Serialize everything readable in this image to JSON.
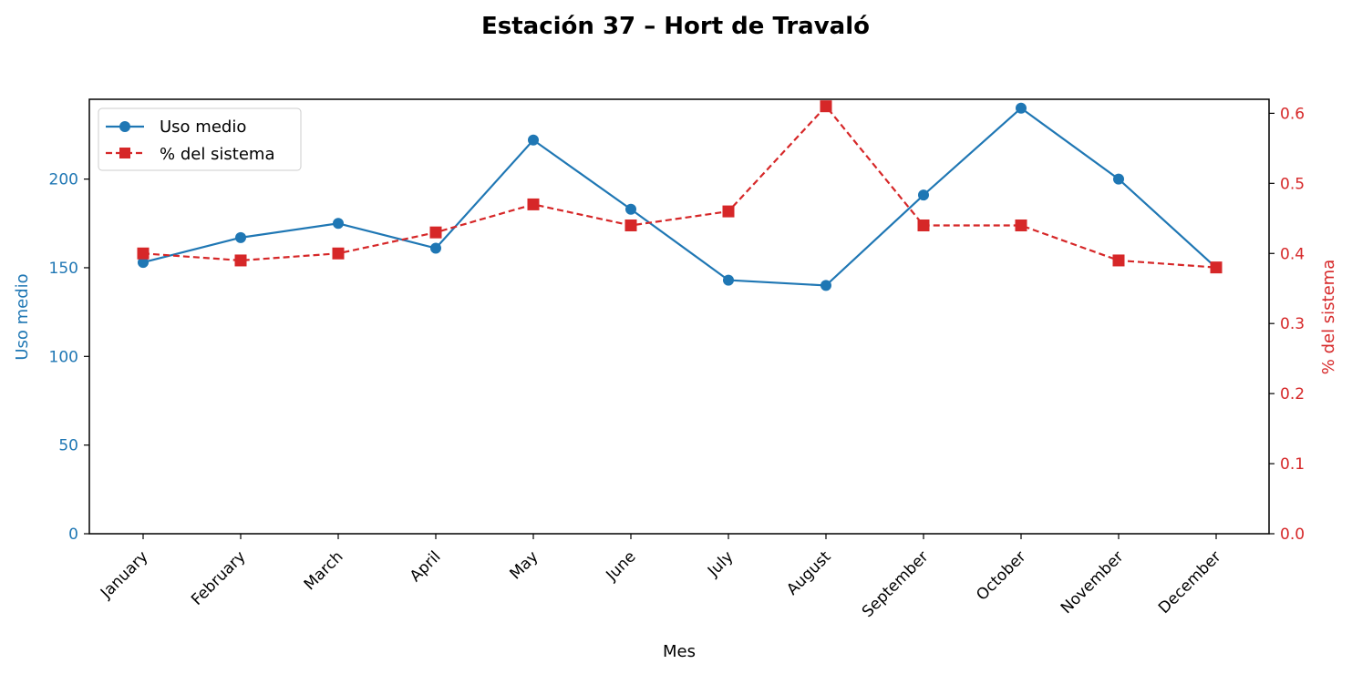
{
  "chart_data": {
    "type": "line",
    "title": "Estación 37 – Hort de Travaló",
    "xlabel": "Mes",
    "ylabel_left": "Uso medio",
    "ylabel_right": "% del sistema",
    "categories": [
      "January",
      "February",
      "March",
      "April",
      "May",
      "June",
      "July",
      "August",
      "September",
      "October",
      "November",
      "December"
    ],
    "ylim_left": [
      0,
      245
    ],
    "ylim_right": [
      0,
      0.62
    ],
    "yticks_left": [
      "0",
      "50",
      "100",
      "150",
      "200"
    ],
    "yticks_right": [
      "0.0",
      "0.1",
      "0.2",
      "0.3",
      "0.4",
      "0.5",
      "0.6"
    ],
    "legend_placement": "top-left",
    "grid": false,
    "series": [
      {
        "name": "Uso medio",
        "axis": "left",
        "color": "#1f77b4",
        "marker": "circle",
        "linestyle": "solid",
        "values": [
          153,
          167,
          175,
          161,
          222,
          183,
          143,
          140,
          191,
          240,
          200,
          150
        ]
      },
      {
        "name": "% del sistema",
        "axis": "right",
        "color": "#d62728",
        "marker": "square",
        "linestyle": "dashed",
        "values": [
          0.4,
          0.39,
          0.4,
          0.43,
          0.47,
          0.44,
          0.46,
          0.61,
          0.44,
          0.44,
          0.39,
          0.38
        ]
      }
    ]
  }
}
